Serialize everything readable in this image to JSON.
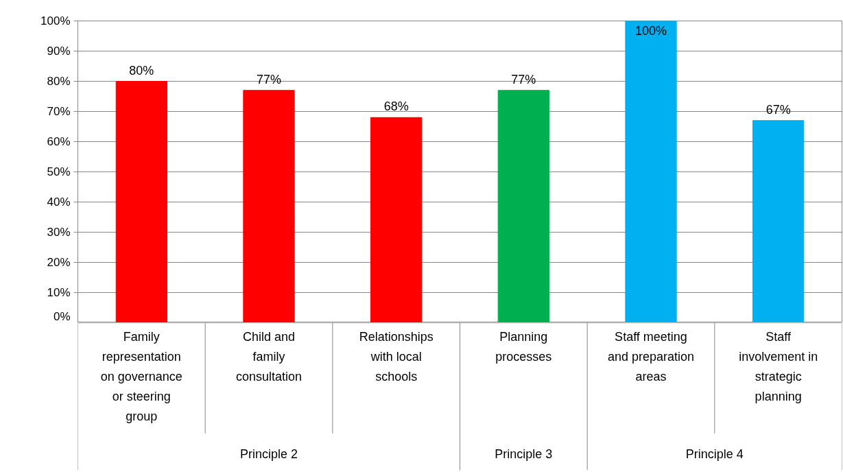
{
  "chart_data": {
    "type": "bar",
    "categories": [
      "Family representation on governance or steering group",
      "Child and family consultation",
      "Relationships with local schools",
      "Planning processes",
      "Staff meeting and preparation areas",
      "Staff involvement in strategic planning"
    ],
    "values": [
      80,
      77,
      68,
      77,
      100,
      67
    ],
    "colors": [
      "#ff0000",
      "#ff0000",
      "#ff0000",
      "#00b050",
      "#00b0f0",
      "#00b0f0"
    ],
    "value_labels": [
      "80%",
      "77%",
      "68%",
      "77%",
      "100%",
      "67%"
    ],
    "annotations": [
      "Principle 2",
      "Principle 3",
      "Principle 4"
    ],
    "ylim": [
      0,
      100
    ],
    "yticks": [
      {
        "value": 0,
        "label": "0%"
      },
      {
        "value": 10,
        "label": "10%"
      },
      {
        "value": 20,
        "label": "20%"
      },
      {
        "value": 30,
        "label": "30%"
      },
      {
        "value": 40,
        "label": "40%"
      },
      {
        "value": 50,
        "label": "50%"
      },
      {
        "value": 60,
        "label": "60%"
      },
      {
        "value": 70,
        "label": "70%"
      },
      {
        "value": 80,
        "label": "80%"
      },
      {
        "value": 90,
        "label": "90%"
      },
      {
        "value": 100,
        "label": "100%"
      }
    ],
    "grid": "y"
  }
}
